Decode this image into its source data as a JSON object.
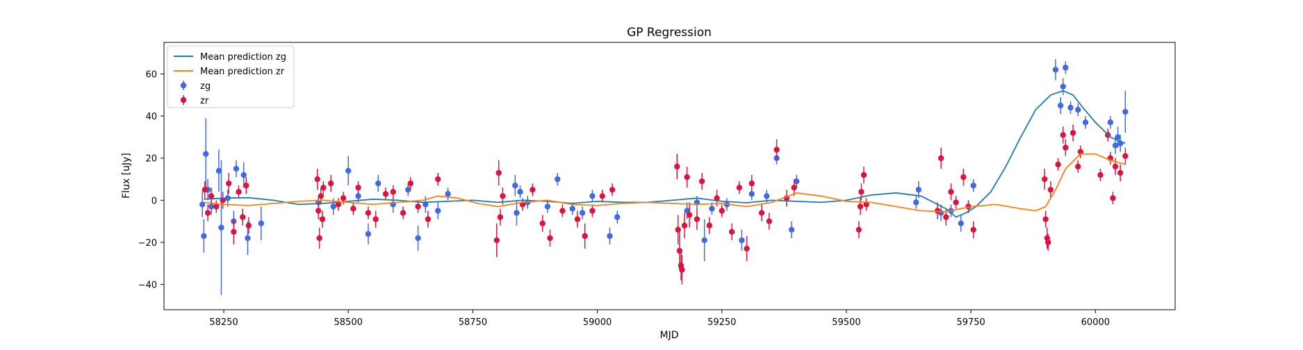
{
  "chart_data": {
    "type": "scatter",
    "title": "GP Regression",
    "xlabel": "MJD",
    "ylabel": "Flux [uJy]",
    "xlim": [
      58130,
      60160
    ],
    "ylim": [
      -52,
      75
    ],
    "x_ticks": [
      58250,
      58500,
      58750,
      59000,
      59250,
      59500,
      59750,
      60000
    ],
    "y_ticks": [
      -40,
      -20,
      0,
      20,
      40,
      60
    ],
    "grid": false,
    "legend_position": "upper-left",
    "legend": [
      {
        "label": "Mean prediction zg",
        "kind": "line",
        "color": "#1f77b4"
      },
      {
        "label": "Mean prediction zr",
        "kind": "line",
        "color": "#ff7f0e"
      },
      {
        "label": "zg",
        "kind": "marker",
        "color": "#4169e1"
      },
      {
        "label": "zr",
        "kind": "marker",
        "color": "#dc143c"
      }
    ],
    "series": [
      {
        "name": "Mean prediction zg",
        "kind": "line",
        "color": "#1f77b4",
        "points": [
          [
            58210,
            0.5
          ],
          [
            58250,
            1
          ],
          [
            58300,
            1.2
          ],
          [
            58350,
            0
          ],
          [
            58400,
            -2
          ],
          [
            58450,
            -1.5
          ],
          [
            58500,
            -0.5
          ],
          [
            58550,
            0.5
          ],
          [
            58600,
            0
          ],
          [
            58650,
            -1
          ],
          [
            58700,
            -0.5
          ],
          [
            58750,
            0
          ],
          [
            58800,
            -1
          ],
          [
            58850,
            0
          ],
          [
            58900,
            -0.5
          ],
          [
            58950,
            -1.5
          ],
          [
            59000,
            -0.5
          ],
          [
            59050,
            -1
          ],
          [
            59100,
            -1
          ],
          [
            59150,
            0
          ],
          [
            59200,
            1
          ],
          [
            59250,
            -0.5
          ],
          [
            59300,
            -1.2
          ],
          [
            59350,
            0
          ],
          [
            59400,
            -0.5
          ],
          [
            59450,
            -1
          ],
          [
            59500,
            0
          ],
          [
            59550,
            2.5
          ],
          [
            59600,
            3.5
          ],
          [
            59650,
            2
          ],
          [
            59700,
            -4
          ],
          [
            59720,
            -8
          ],
          [
            59740,
            -6
          ],
          [
            59760,
            -3
          ],
          [
            59790,
            4
          ],
          [
            59820,
            16
          ],
          [
            59850,
            30
          ],
          [
            59880,
            43
          ],
          [
            59910,
            50
          ],
          [
            59935,
            52
          ],
          [
            59955,
            50
          ],
          [
            59975,
            44
          ],
          [
            60000,
            37
          ],
          [
            60030,
            30
          ],
          [
            60060,
            27
          ]
        ]
      },
      {
        "name": "Mean prediction zr",
        "kind": "line",
        "color": "#ff7f0e",
        "points": [
          [
            58210,
            -1
          ],
          [
            58250,
            -2
          ],
          [
            58300,
            -2.5
          ],
          [
            58350,
            -1.5
          ],
          [
            58400,
            -0.5
          ],
          [
            58450,
            0
          ],
          [
            58500,
            -1
          ],
          [
            58550,
            -2
          ],
          [
            58600,
            -1
          ],
          [
            58650,
            0
          ],
          [
            58680,
            2
          ],
          [
            58720,
            1
          ],
          [
            58760,
            -1.5
          ],
          [
            58800,
            -3
          ],
          [
            58850,
            -1
          ],
          [
            58900,
            0
          ],
          [
            58950,
            -2
          ],
          [
            59000,
            -2.5
          ],
          [
            59050,
            -1.5
          ],
          [
            59100,
            -1
          ],
          [
            59150,
            -1.5
          ],
          [
            59200,
            -2
          ],
          [
            59250,
            -1.5
          ],
          [
            59300,
            -3
          ],
          [
            59350,
            -1
          ],
          [
            59400,
            3.5
          ],
          [
            59450,
            2
          ],
          [
            59500,
            -0.5
          ],
          [
            59550,
            -1
          ],
          [
            59600,
            -3
          ],
          [
            59650,
            -5
          ],
          [
            59700,
            -5.5
          ],
          [
            59750,
            -3
          ],
          [
            59800,
            -2
          ],
          [
            59850,
            -4
          ],
          [
            59880,
            -5
          ],
          [
            59900,
            -3
          ],
          [
            59920,
            5
          ],
          [
            59940,
            15
          ],
          [
            59970,
            22
          ],
          [
            60000,
            22
          ],
          [
            60030,
            19
          ],
          [
            60060,
            17
          ]
        ]
      },
      {
        "name": "zg",
        "kind": "errorbar",
        "color": "#4169e1",
        "points": [
          [
            58207,
            -2,
            6
          ],
          [
            58210,
            -17,
            8
          ],
          [
            58214,
            22,
            17
          ],
          [
            58218,
            5,
            5
          ],
          [
            58225,
            -3,
            4
          ],
          [
            58240,
            14,
            10
          ],
          [
            58245,
            -13,
            32
          ],
          [
            58258,
            1,
            4
          ],
          [
            58270,
            -10,
            5
          ],
          [
            58275,
            15,
            4
          ],
          [
            58290,
            12,
            6
          ],
          [
            58298,
            -18,
            8
          ],
          [
            58325,
            -11,
            8
          ],
          [
            58440,
            -1,
            3
          ],
          [
            58470,
            -3,
            4
          ],
          [
            58500,
            14,
            7
          ],
          [
            58520,
            2,
            3
          ],
          [
            58540,
            -16,
            5
          ],
          [
            58560,
            8,
            4
          ],
          [
            58590,
            -2,
            4
          ],
          [
            58620,
            5,
            3
          ],
          [
            58640,
            -18,
            6
          ],
          [
            58655,
            -2,
            4
          ],
          [
            58680,
            -5,
            4
          ],
          [
            58700,
            3,
            3
          ],
          [
            58835,
            7,
            5
          ],
          [
            58838,
            -6,
            6
          ],
          [
            58845,
            4,
            3
          ],
          [
            58860,
            -1,
            3
          ],
          [
            58900,
            -3,
            3
          ],
          [
            58920,
            10,
            3
          ],
          [
            58950,
            -4,
            3
          ],
          [
            58970,
            -6,
            3
          ],
          [
            58990,
            2,
            3
          ],
          [
            59025,
            -17,
            4
          ],
          [
            59040,
            -8,
            3
          ],
          [
            59180,
            -5,
            4
          ],
          [
            59200,
            -1,
            3
          ],
          [
            59215,
            -19,
            10
          ],
          [
            59230,
            -4,
            3
          ],
          [
            59260,
            -2,
            3
          ],
          [
            59290,
            -19,
            5
          ],
          [
            59310,
            3,
            3
          ],
          [
            59340,
            2,
            3
          ],
          [
            59360,
            20,
            3
          ],
          [
            59390,
            -14,
            4
          ],
          [
            59400,
            9,
            3
          ],
          [
            59640,
            -1,
            3
          ],
          [
            59645,
            5,
            4
          ],
          [
            59690,
            -6,
            4
          ],
          [
            59710,
            -5,
            3
          ],
          [
            59730,
            -11,
            4
          ],
          [
            59745,
            -3,
            3
          ],
          [
            59755,
            7,
            3
          ],
          [
            59920,
            62,
            5
          ],
          [
            59930,
            45,
            4
          ],
          [
            59935,
            54,
            4
          ],
          [
            59940,
            63,
            3
          ],
          [
            59950,
            44,
            3
          ],
          [
            59965,
            43,
            3
          ],
          [
            59980,
            37,
            3
          ],
          [
            60030,
            37,
            3
          ],
          [
            60040,
            26,
            4
          ],
          [
            60045,
            30,
            5
          ],
          [
            60050,
            27,
            4
          ],
          [
            60060,
            42,
            10
          ]
        ]
      },
      {
        "name": "zr",
        "kind": "errorbar",
        "color": "#dc143c",
        "points": [
          [
            58212,
            5,
            4
          ],
          [
            58218,
            -6,
            4
          ],
          [
            58225,
            2,
            4
          ],
          [
            58235,
            -3,
            3
          ],
          [
            58248,
            0,
            4
          ],
          [
            58260,
            8,
            5
          ],
          [
            58270,
            -15,
            6
          ],
          [
            58280,
            4,
            3
          ],
          [
            58288,
            -8,
            4
          ],
          [
            58295,
            7,
            4
          ],
          [
            58300,
            -12,
            4
          ],
          [
            58438,
            10,
            5
          ],
          [
            58440,
            -5,
            4
          ],
          [
            58442,
            -18,
            5
          ],
          [
            58445,
            2,
            4
          ],
          [
            58448,
            -9,
            4
          ],
          [
            58450,
            6,
            3
          ],
          [
            58465,
            8,
            4
          ],
          [
            58480,
            -2,
            3
          ],
          [
            58490,
            1,
            3
          ],
          [
            58510,
            -4,
            3
          ],
          [
            58520,
            6,
            3
          ],
          [
            58540,
            -6,
            3
          ],
          [
            58555,
            -9,
            4
          ],
          [
            58575,
            3,
            3
          ],
          [
            58590,
            4,
            3
          ],
          [
            58610,
            -6,
            3
          ],
          [
            58625,
            8,
            3
          ],
          [
            58640,
            -3,
            3
          ],
          [
            58660,
            -9,
            4
          ],
          [
            58680,
            10,
            3
          ],
          [
            58798,
            -19,
            8
          ],
          [
            58802,
            13,
            6
          ],
          [
            58805,
            -8,
            4
          ],
          [
            58810,
            2,
            4
          ],
          [
            58850,
            -2,
            3
          ],
          [
            58870,
            5,
            3
          ],
          [
            58890,
            -11,
            4
          ],
          [
            58905,
            -18,
            4
          ],
          [
            58930,
            -5,
            3
          ],
          [
            58960,
            -9,
            4
          ],
          [
            58975,
            -17,
            6
          ],
          [
            58990,
            -5,
            3
          ],
          [
            59010,
            2,
            3
          ],
          [
            59030,
            5,
            3
          ],
          [
            59160,
            16,
            6
          ],
          [
            59162,
            -14,
            7
          ],
          [
            59165,
            -24,
            9
          ],
          [
            59168,
            -31,
            7
          ],
          [
            59170,
            -33,
            7
          ],
          [
            59175,
            -12,
            6
          ],
          [
            59180,
            11,
            5
          ],
          [
            59185,
            -7,
            6
          ],
          [
            59200,
            -9,
            5
          ],
          [
            59210,
            9,
            4
          ],
          [
            59225,
            -12,
            4
          ],
          [
            59240,
            1,
            4
          ],
          [
            59250,
            -5,
            3
          ],
          [
            59270,
            -15,
            4
          ],
          [
            59285,
            6,
            3
          ],
          [
            59300,
            -23,
            6
          ],
          [
            59310,
            8,
            4
          ],
          [
            59330,
            -6,
            4
          ],
          [
            59345,
            -10,
            4
          ],
          [
            59360,
            24,
            5
          ],
          [
            59380,
            1,
            4
          ],
          [
            59395,
            6,
            4
          ],
          [
            59525,
            -14,
            4
          ],
          [
            59528,
            -3,
            4
          ],
          [
            59530,
            4,
            4
          ],
          [
            59535,
            12,
            4
          ],
          [
            59540,
            -2,
            3
          ],
          [
            59683,
            -5,
            4
          ],
          [
            59690,
            20,
            5
          ],
          [
            59700,
            -8,
            4
          ],
          [
            59710,
            4,
            4
          ],
          [
            59720,
            -1,
            3
          ],
          [
            59735,
            11,
            4
          ],
          [
            59745,
            -3,
            3
          ],
          [
            59755,
            -14,
            4
          ],
          [
            59898,
            10,
            5
          ],
          [
            59900,
            -9,
            4
          ],
          [
            59903,
            -18,
            5
          ],
          [
            59905,
            -20,
            4
          ],
          [
            59910,
            5,
            4
          ],
          [
            59925,
            17,
            3
          ],
          [
            59935,
            31,
            4
          ],
          [
            59940,
            25,
            4
          ],
          [
            59955,
            32,
            4
          ],
          [
            59965,
            16,
            3
          ],
          [
            59970,
            23,
            3
          ],
          [
            60010,
            12,
            3
          ],
          [
            60025,
            31,
            3
          ],
          [
            60030,
            20,
            3
          ],
          [
            60035,
            1,
            3
          ],
          [
            60040,
            16,
            4
          ],
          [
            60050,
            13,
            4
          ],
          [
            60060,
            21,
            4
          ]
        ]
      }
    ]
  }
}
